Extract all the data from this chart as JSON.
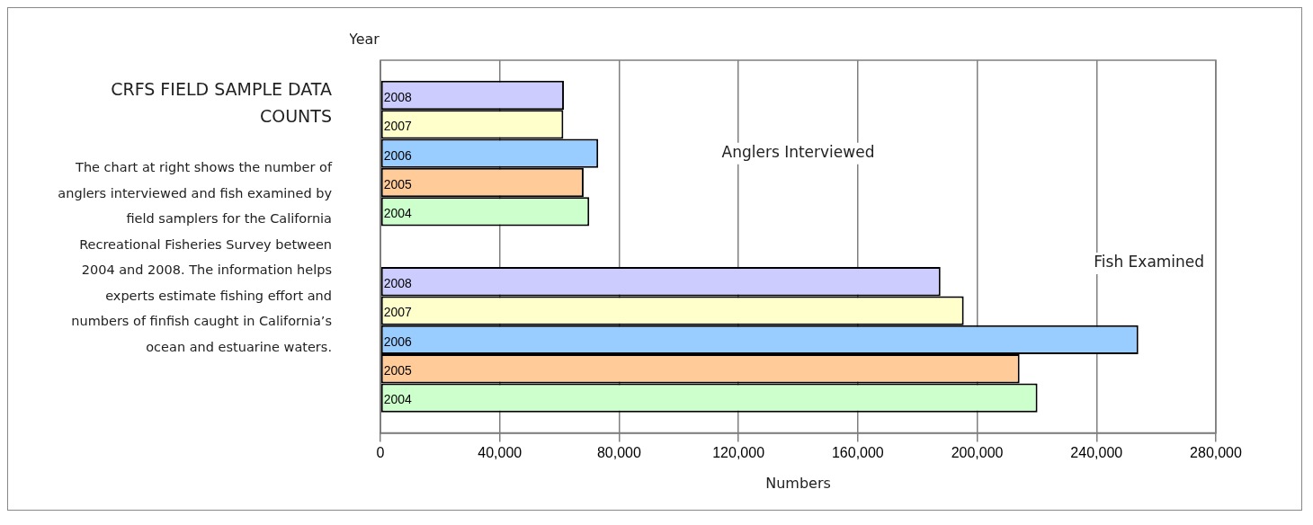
{
  "chart_data": {
    "type": "bar",
    "orientation": "horizontal",
    "title": "CRFS FIELD SAMPLE DATA COUNTS",
    "subtitle": "The chart at right shows the number of anglers interviewed and fish examined by field samplers for the California Recreational Fisheries Survey between 2004 and 2008. The information helps experts estimate fishing effort and numbers of finfish caught in California’s ocean and estuarine waters.",
    "ylabel": "Year",
    "xlabel": "Numbers",
    "annotations": [
      "Anglers Interviewed",
      "Fish Examined"
    ],
    "categories": [
      null,
      null
    ],
    "series": [
      {
        "name": "2008",
        "color": "#ccccff",
        "values": [
          61500,
          187700
        ]
      },
      {
        "name": "2007",
        "color": "#ffffcc",
        "values": [
          61300,
          195500
        ]
      },
      {
        "name": "2006",
        "color": "#99ccff",
        "values": [
          73000,
          254000
        ]
      },
      {
        "name": "2005",
        "color": "#ffcc99",
        "values": [
          68100,
          214200
        ]
      },
      {
        "name": "2004",
        "color": "#ccffcc",
        "values": [
          70000,
          220200
        ]
      }
    ],
    "xlim": [
      0,
      280000
    ],
    "xticks": [
      0,
      {
        "value": 40000,
        "label": "40,000"
      },
      {
        "value": 80000,
        "label": "80,000"
      },
      {
        "value": 120000,
        "label": "120,000"
      },
      {
        "value": 160000,
        "label": "160,000"
      },
      {
        "value": 200000,
        "label": "200,000"
      },
      {
        "value": 240000,
        "label": "240,000"
      },
      {
        "value": 280000,
        "label": "280,000"
      }
    ],
    "grid": "x",
    "legend": false
  }
}
